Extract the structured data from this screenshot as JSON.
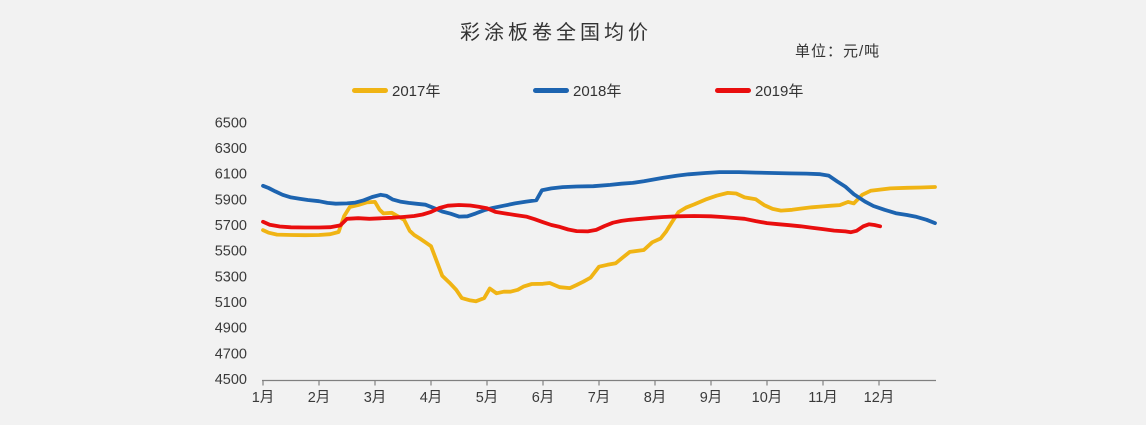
{
  "colors": {
    "background": "#f2f2f2",
    "axis": "#808080",
    "text": "#333333"
  },
  "chart_data": {
    "type": "line",
    "title": "彩涂板卷全国均价",
    "unit": "单位：元/吨",
    "grid": false,
    "legend_position": "top",
    "x_axis": {
      "labels": [
        "1月",
        "2月",
        "3月",
        "4月",
        "5月",
        "6月",
        "7月",
        "8月",
        "9月",
        "10月",
        "11月",
        "12月"
      ],
      "range_months": [
        1,
        13
      ]
    },
    "y_axis": {
      "min": 4500,
      "max": 6500,
      "tick_step": 200,
      "ticks": [
        6500,
        6300,
        6100,
        5900,
        5700,
        5500,
        5300,
        5100,
        4900,
        4700,
        4500
      ]
    },
    "series": [
      {
        "name": "2017年",
        "color": "#F0B414",
        "points": [
          [
            1.0,
            5660
          ],
          [
            1.1,
            5640
          ],
          [
            1.25,
            5625
          ],
          [
            1.5,
            5622
          ],
          [
            1.75,
            5620
          ],
          [
            2.0,
            5622
          ],
          [
            2.2,
            5628
          ],
          [
            2.35,
            5645
          ],
          [
            2.45,
            5770
          ],
          [
            2.55,
            5840
          ],
          [
            2.7,
            5856
          ],
          [
            2.85,
            5876
          ],
          [
            3.0,
            5880
          ],
          [
            3.08,
            5820
          ],
          [
            3.15,
            5790
          ],
          [
            3.3,
            5795
          ],
          [
            3.42,
            5765
          ],
          [
            3.52,
            5740
          ],
          [
            3.62,
            5655
          ],
          [
            3.7,
            5622
          ],
          [
            3.8,
            5595
          ],
          [
            3.9,
            5565
          ],
          [
            4.0,
            5535
          ],
          [
            4.1,
            5420
          ],
          [
            4.2,
            5305
          ],
          [
            4.33,
            5250
          ],
          [
            4.45,
            5195
          ],
          [
            4.55,
            5130
          ],
          [
            4.7,
            5112
          ],
          [
            4.8,
            5105
          ],
          [
            4.95,
            5130
          ],
          [
            5.05,
            5205
          ],
          [
            5.17,
            5168
          ],
          [
            5.3,
            5180
          ],
          [
            5.42,
            5180
          ],
          [
            5.55,
            5195
          ],
          [
            5.65,
            5220
          ],
          [
            5.8,
            5240
          ],
          [
            6.0,
            5242
          ],
          [
            6.12,
            5248
          ],
          [
            6.3,
            5215
          ],
          [
            6.48,
            5208
          ],
          [
            6.6,
            5232
          ],
          [
            6.72,
            5258
          ],
          [
            6.85,
            5290
          ],
          [
            7.0,
            5375
          ],
          [
            7.15,
            5390
          ],
          [
            7.3,
            5402
          ],
          [
            7.42,
            5445
          ],
          [
            7.55,
            5490
          ],
          [
            7.8,
            5505
          ],
          [
            7.95,
            5565
          ],
          [
            8.1,
            5595
          ],
          [
            8.2,
            5650
          ],
          [
            8.3,
            5720
          ],
          [
            8.42,
            5800
          ],
          [
            8.55,
            5835
          ],
          [
            8.7,
            5860
          ],
          [
            8.9,
            5898
          ],
          [
            9.1,
            5928
          ],
          [
            9.3,
            5950
          ],
          [
            9.45,
            5945
          ],
          [
            9.6,
            5915
          ],
          [
            9.8,
            5900
          ],
          [
            9.95,
            5855
          ],
          [
            10.1,
            5825
          ],
          [
            10.25,
            5812
          ],
          [
            10.45,
            5818
          ],
          [
            10.6,
            5828
          ],
          [
            10.8,
            5838
          ],
          [
            11.0,
            5845
          ],
          [
            11.15,
            5850
          ],
          [
            11.3,
            5855
          ],
          [
            11.45,
            5880
          ],
          [
            11.55,
            5868
          ],
          [
            11.7,
            5935
          ],
          [
            11.85,
            5966
          ],
          [
            12.0,
            5975
          ],
          [
            12.2,
            5985
          ],
          [
            12.5,
            5990
          ],
          [
            12.75,
            5992
          ],
          [
            13.0,
            5996
          ]
        ]
      },
      {
        "name": "2018年",
        "color": "#1D64B0",
        "points": [
          [
            1.0,
            6005
          ],
          [
            1.1,
            5988
          ],
          [
            1.22,
            5962
          ],
          [
            1.35,
            5935
          ],
          [
            1.5,
            5915
          ],
          [
            1.65,
            5905
          ],
          [
            1.8,
            5895
          ],
          [
            2.0,
            5885
          ],
          [
            2.15,
            5872
          ],
          [
            2.3,
            5866
          ],
          [
            2.5,
            5868
          ],
          [
            2.65,
            5874
          ],
          [
            2.8,
            5892
          ],
          [
            2.95,
            5918
          ],
          [
            3.1,
            5935
          ],
          [
            3.2,
            5928
          ],
          [
            3.32,
            5898
          ],
          [
            3.45,
            5882
          ],
          [
            3.6,
            5872
          ],
          [
            3.75,
            5865
          ],
          [
            3.9,
            5858
          ],
          [
            4.05,
            5832
          ],
          [
            4.2,
            5805
          ],
          [
            4.35,
            5788
          ],
          [
            4.5,
            5765
          ],
          [
            4.65,
            5768
          ],
          [
            4.8,
            5790
          ],
          [
            4.95,
            5815
          ],
          [
            5.1,
            5832
          ],
          [
            5.3,
            5850
          ],
          [
            5.5,
            5868
          ],
          [
            5.7,
            5882
          ],
          [
            5.88,
            5892
          ],
          [
            5.98,
            5970
          ],
          [
            6.15,
            5985
          ],
          [
            6.35,
            5995
          ],
          [
            6.6,
            6000
          ],
          [
            6.9,
            6002
          ],
          [
            7.2,
            6012
          ],
          [
            7.4,
            6022
          ],
          [
            7.6,
            6028
          ],
          [
            7.8,
            6040
          ],
          [
            7.95,
            6052
          ],
          [
            8.15,
            6068
          ],
          [
            8.4,
            6085
          ],
          [
            8.6,
            6095
          ],
          [
            8.9,
            6105
          ],
          [
            9.15,
            6112
          ],
          [
            9.5,
            6112
          ],
          [
            9.8,
            6108
          ],
          [
            10.1,
            6105
          ],
          [
            10.4,
            6102
          ],
          [
            10.7,
            6100
          ],
          [
            10.95,
            6096
          ],
          [
            11.1,
            6085
          ],
          [
            11.25,
            6040
          ],
          [
            11.4,
            5998
          ],
          [
            11.55,
            5940
          ],
          [
            11.75,
            5882
          ],
          [
            11.9,
            5848
          ],
          [
            12.1,
            5818
          ],
          [
            12.3,
            5792
          ],
          [
            12.5,
            5778
          ],
          [
            12.65,
            5765
          ],
          [
            12.85,
            5740
          ],
          [
            13.0,
            5715
          ]
        ]
      },
      {
        "name": "2019年",
        "color": "#E90E0E",
        "points": [
          [
            1.0,
            5725
          ],
          [
            1.12,
            5702
          ],
          [
            1.3,
            5688
          ],
          [
            1.5,
            5682
          ],
          [
            1.75,
            5680
          ],
          [
            2.0,
            5680
          ],
          [
            2.2,
            5683
          ],
          [
            2.38,
            5697
          ],
          [
            2.5,
            5748
          ],
          [
            2.7,
            5753
          ],
          [
            2.9,
            5748
          ],
          [
            3.1,
            5752
          ],
          [
            3.3,
            5756
          ],
          [
            3.5,
            5762
          ],
          [
            3.7,
            5770
          ],
          [
            3.85,
            5782
          ],
          [
            4.0,
            5802
          ],
          [
            4.15,
            5832
          ],
          [
            4.3,
            5850
          ],
          [
            4.5,
            5856
          ],
          [
            4.7,
            5852
          ],
          [
            4.85,
            5842
          ],
          [
            5.0,
            5830
          ],
          [
            5.15,
            5802
          ],
          [
            5.3,
            5792
          ],
          [
            5.5,
            5778
          ],
          [
            5.7,
            5765
          ],
          [
            5.85,
            5745
          ],
          [
            6.0,
            5722
          ],
          [
            6.15,
            5700
          ],
          [
            6.3,
            5685
          ],
          [
            6.45,
            5665
          ],
          [
            6.6,
            5652
          ],
          [
            6.8,
            5650
          ],
          [
            6.95,
            5662
          ],
          [
            7.1,
            5692
          ],
          [
            7.25,
            5718
          ],
          [
            7.4,
            5732
          ],
          [
            7.55,
            5740
          ],
          [
            7.75,
            5748
          ],
          [
            7.95,
            5756
          ],
          [
            8.15,
            5762
          ],
          [
            8.4,
            5768
          ],
          [
            8.7,
            5770
          ],
          [
            9.0,
            5768
          ],
          [
            9.2,
            5762
          ],
          [
            9.4,
            5755
          ],
          [
            9.6,
            5748
          ],
          [
            9.8,
            5730
          ],
          [
            10.0,
            5715
          ],
          [
            10.2,
            5706
          ],
          [
            10.4,
            5698
          ],
          [
            10.6,
            5690
          ],
          [
            10.8,
            5678
          ],
          [
            11.0,
            5668
          ],
          [
            11.2,
            5656
          ],
          [
            11.4,
            5650
          ],
          [
            11.5,
            5644
          ],
          [
            11.6,
            5655
          ],
          [
            11.72,
            5690
          ],
          [
            11.82,
            5705
          ],
          [
            11.92,
            5700
          ],
          [
            12.02,
            5690
          ]
        ]
      }
    ]
  }
}
